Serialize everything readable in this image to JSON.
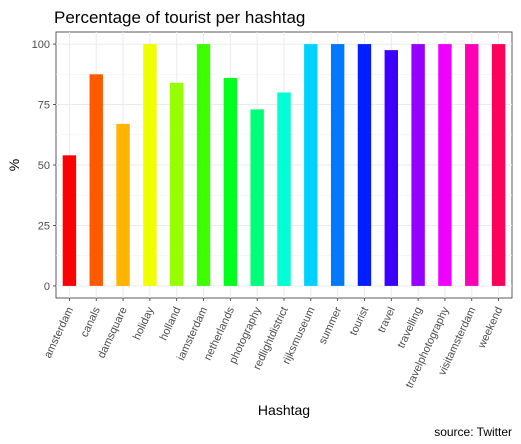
{
  "chart_data": {
    "type": "bar",
    "title": "Percentage of tourist per hashtag",
    "xlabel": "Hashtag",
    "ylabel": "%",
    "caption": "source: Twitter",
    "ylim": [
      -5,
      105
    ],
    "yticks": [
      0,
      25,
      50,
      75,
      100
    ],
    "grid": true,
    "legend": "none",
    "categories": [
      "amsterdam",
      "canals",
      "damsquare",
      "holiday",
      "holland",
      "iamsterdam",
      "netherlands",
      "photography",
      "redlightdistrict",
      "rijksmuseum",
      "summer",
      "tourist",
      "travel",
      "travelling",
      "travelphotography",
      "visitamsterdam",
      "weekend"
    ],
    "values": [
      54,
      87.5,
      67,
      100,
      84,
      100,
      86,
      73,
      80,
      100,
      100,
      100,
      97.5,
      100,
      100,
      100,
      100
    ],
    "colors": [
      "#FF0000",
      "#FF5A00",
      "#FFB400",
      "#F0FF00",
      "#96FF00",
      "#3CFF00",
      "#00FF1E",
      "#00FF78",
      "#00FFD2",
      "#00D2FF",
      "#0078FF",
      "#001EFF",
      "#3C00FF",
      "#9600FF",
      "#F000FF",
      "#FF00B4",
      "#FF005A"
    ]
  }
}
